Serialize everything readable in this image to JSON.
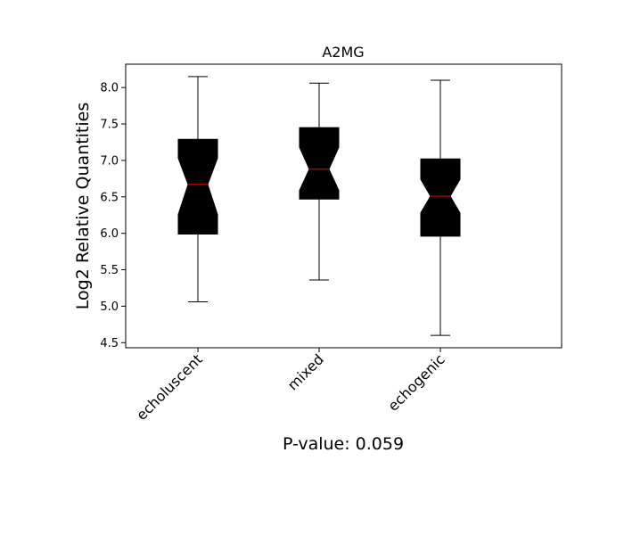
{
  "chart_data": {
    "type": "box",
    "title": "A2MG",
    "ylabel": "Log2 Relative Quantities",
    "xlabel": "P-value: 0.059",
    "ylim": [
      4.43,
      8.32
    ],
    "yticks": [
      4.5,
      5.0,
      5.5,
      6.0,
      6.5,
      7.0,
      7.5,
      8.0
    ],
    "ytick_labels": [
      "4.5",
      "5.0",
      "5.5",
      "6.0",
      "6.5",
      "7.0",
      "7.5",
      "8.0"
    ],
    "notched": true,
    "grid": false,
    "colors": {
      "box": "#000000",
      "median": "#ff0000",
      "whisker": "#000000"
    },
    "categories": [
      "echoluscent",
      "mixed",
      "echogenic"
    ],
    "boxes": [
      {
        "category": "echoluscent",
        "whisker_low": 5.06,
        "q1": 5.99,
        "notch_low": 6.26,
        "median": 6.67,
        "notch_high": 7.03,
        "q3": 7.29,
        "whisker_high": 8.15
      },
      {
        "category": "mixed",
        "whisker_low": 5.36,
        "q1": 6.47,
        "notch_low": 6.59,
        "median": 6.88,
        "notch_high": 7.18,
        "q3": 7.45,
        "whisker_high": 8.06
      },
      {
        "category": "echogenic",
        "whisker_low": 4.6,
        "q1": 5.96,
        "notch_low": 6.28,
        "median": 6.51,
        "notch_high": 6.74,
        "q3": 7.02,
        "whisker_high": 8.1
      }
    ]
  }
}
